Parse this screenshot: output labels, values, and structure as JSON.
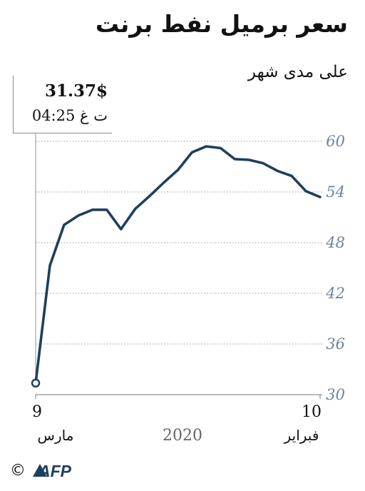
{
  "chart_data": {
    "type": "line",
    "title": "سعر برميل نفط برنت",
    "subtitle": "على مدى شهر",
    "ylim": [
      30,
      60
    ],
    "yticks": [
      "60",
      "54",
      "48",
      "42",
      "36",
      "30"
    ],
    "ytick_values": [
      60,
      54,
      48,
      42,
      36,
      30
    ],
    "grid": true,
    "x_labels": {
      "start": "9",
      "start_sub": "مارس",
      "end": "10",
      "end_sub": "فبراير",
      "year": "2020"
    },
    "series": [
      {
        "values": [
          31.37,
          45.3,
          50.1,
          51.2,
          51.9,
          51.9,
          49.6,
          52.0,
          53.5,
          55.1,
          56.6,
          58.7,
          59.4,
          59.2,
          57.9,
          57.8,
          57.4,
          56.5,
          55.9,
          54.1,
          53.4
        ],
        "color": "#1f3f5c"
      }
    ],
    "annotation": {
      "value": "31.37$",
      "time": "04:25 ت غ"
    }
  },
  "footer": {
    "copyright": "©",
    "logo": "AFP"
  }
}
